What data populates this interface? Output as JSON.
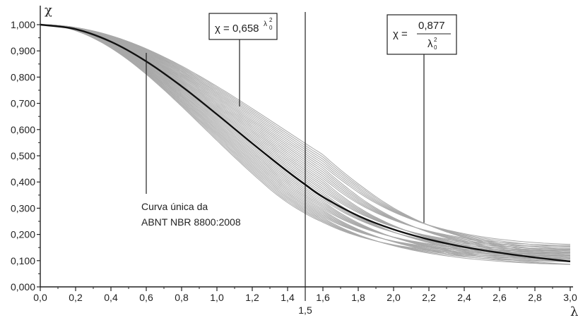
{
  "chart_data": {
    "type": "line",
    "xlabel": "λ",
    "ylabel": "χ",
    "xlim": [
      0,
      3.0
    ],
    "ylim": [
      0,
      1.0
    ],
    "x_ticks": [
      "0,0",
      "0,2",
      "0,4",
      "0,6",
      "0,8",
      "1,0",
      "1,2",
      "1,4",
      "1,6",
      "1,8",
      "2,0",
      "2,2",
      "2,4",
      "2,6",
      "2,8",
      "3,0"
    ],
    "y_ticks": [
      "0,000",
      "0,100",
      "0,200",
      "0,300",
      "0,400",
      "0,500",
      "0,600",
      "0,700",
      "0,800",
      "0,900",
      "1,000"
    ],
    "grid": false,
    "reference_line": {
      "x": 1.5,
      "label": "1,5"
    },
    "main_curve": {
      "color": "#111111",
      "x": [
        0.0,
        0.2,
        0.4,
        0.6,
        0.8,
        1.0,
        1.2,
        1.4,
        1.5,
        1.6,
        1.8,
        2.0,
        2.2,
        2.4,
        2.6,
        2.8,
        3.0
      ],
      "y": [
        1.0,
        0.983,
        0.935,
        0.86,
        0.765,
        0.658,
        0.547,
        0.44,
        0.39,
        0.343,
        0.271,
        0.219,
        0.181,
        0.152,
        0.13,
        0.112,
        0.097
      ]
    },
    "background_curves": {
      "color": "#a8a8a8",
      "count": 40,
      "lambda_scale_range": [
        0.8,
        1.18
      ],
      "tail_range": [
        0.092,
        0.16
      ]
    },
    "annotations": {
      "formula_left": {
        "prefix": "χ = 0,658",
        "sup": "λ",
        "sup_exp": "2",
        "sup_sub": "0"
      },
      "formula_right": {
        "prefix": "χ =",
        "numerator": "0,877",
        "denominator": "λ",
        "den_exp": "2",
        "den_sub": "0"
      },
      "note_line1": "Curva única da",
      "note_line2": "ABNT NBR 8800:2008"
    }
  }
}
